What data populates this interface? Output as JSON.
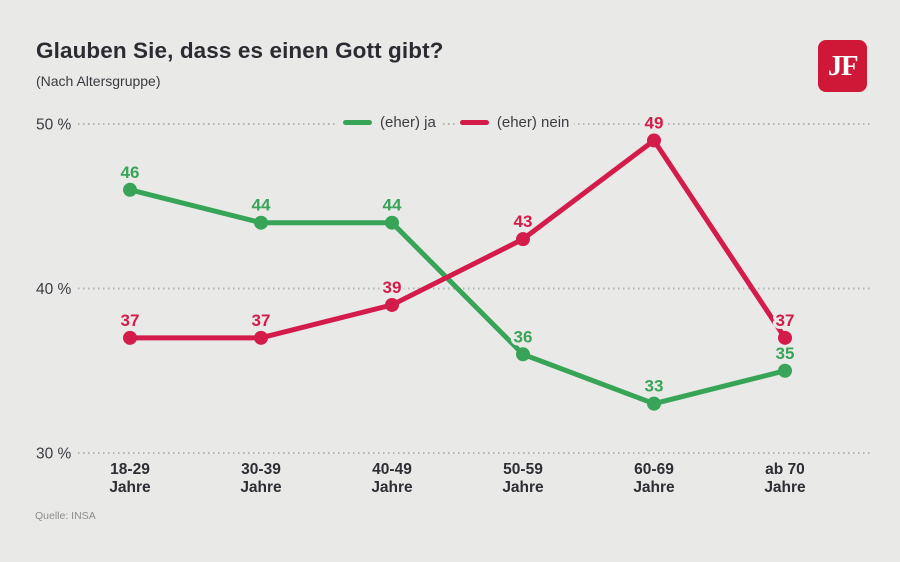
{
  "header": {
    "title": "Glauben Sie, dass es einen Gott gibt?",
    "subtitle": "(Nach Altersgruppe)"
  },
  "logo": {
    "text": "JF",
    "background": "#cf1737",
    "color": "#ffffff"
  },
  "source": "Quelle: INSA",
  "chart_data": {
    "type": "line",
    "title": "Glauben Sie, dass es einen Gott gibt?",
    "subtitle": "(Nach Altersgruppe)",
    "categories": [
      "18-29 Jahre",
      "30-39 Jahre",
      "40-49 Jahre",
      "50-59 Jahre",
      "60-69 Jahre",
      "ab 70 Jahre"
    ],
    "series": [
      {
        "name": "(eher) ja",
        "color": "#38a457",
        "values": [
          46,
          44,
          44,
          36,
          33,
          35
        ]
      },
      {
        "name": "(eher) nein",
        "color": "#d31c4a",
        "values": [
          37,
          37,
          39,
          43,
          49,
          37
        ]
      }
    ],
    "xlabel": "",
    "ylabel": "",
    "ylim": [
      30,
      50
    ],
    "yticks": [
      {
        "value": 50,
        "label": "50 %"
      },
      {
        "value": 40,
        "label": "40 %"
      },
      {
        "value": 30,
        "label": "30 %"
      }
    ],
    "grid": "horizontal-dotted",
    "grid_color": "#b3b3b0",
    "legend_position": "top-center",
    "data_labels": true,
    "source": "Quelle: INSA"
  }
}
